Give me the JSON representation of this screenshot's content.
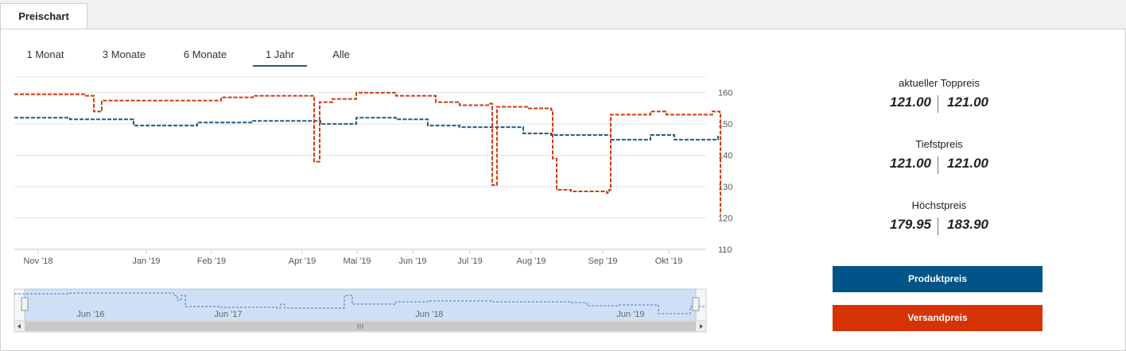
{
  "tabs": [
    {
      "label": "Preischart"
    }
  ],
  "ranges": [
    {
      "label": "1 Monat",
      "active": false
    },
    {
      "label": "3 Monate",
      "active": false
    },
    {
      "label": "6 Monate",
      "active": false
    },
    {
      "label": "1 Jahr",
      "active": true
    },
    {
      "label": "Alle",
      "active": false
    }
  ],
  "chart_data": {
    "type": "line",
    "xlabels": [
      "Nov '18",
      "Jan '19",
      "Feb '19",
      "Apr '19",
      "Mai '19",
      "Jun '19",
      "Jul '19",
      "Aug '19",
      "Sep '19",
      "Okt '19"
    ],
    "yticks": [
      "160",
      "150",
      "140",
      "130",
      "120",
      "110"
    ],
    "ylim": [
      110,
      165
    ],
    "grid": true,
    "series": [
      {
        "color": "#1d5e86",
        "dashed": true,
        "points": [
          [
            0,
            152
          ],
          [
            70,
            151.5
          ],
          [
            150,
            149.5
          ],
          [
            230,
            150.5
          ],
          [
            300,
            151
          ],
          [
            370,
            151
          ],
          [
            385,
            150
          ],
          [
            430,
            152
          ],
          [
            480,
            151.5
          ],
          [
            520,
            149.5
          ],
          [
            560,
            149
          ],
          [
            600,
            149
          ],
          [
            640,
            147
          ],
          [
            675,
            146.5
          ],
          [
            750,
            145
          ],
          [
            800,
            146.5
          ],
          [
            830,
            145
          ],
          [
            885,
            146.5
          ]
        ]
      },
      {
        "color": "#d03b12",
        "dashed": true,
        "points": [
          [
            0,
            159.5
          ],
          [
            90,
            159
          ],
          [
            100,
            154
          ],
          [
            110,
            157.5
          ],
          [
            180,
            157.5
          ],
          [
            260,
            158.5
          ],
          [
            300,
            159
          ],
          [
            375,
            159
          ],
          [
            377,
            138
          ],
          [
            382,
            138
          ],
          [
            384,
            157
          ],
          [
            400,
            158
          ],
          [
            430,
            160
          ],
          [
            480,
            159
          ],
          [
            530,
            157
          ],
          [
            560,
            156
          ],
          [
            598,
            156.5
          ],
          [
            601,
            130.5
          ],
          [
            605,
            130.5
          ],
          [
            607,
            155.5
          ],
          [
            645,
            155
          ],
          [
            675,
            154.5
          ],
          [
            677,
            139
          ],
          [
            680,
            139
          ],
          [
            682,
            129
          ],
          [
            700,
            128.5
          ],
          [
            745,
            128
          ],
          [
            748,
            129
          ],
          [
            750,
            153
          ],
          [
            790,
            153
          ],
          [
            800,
            154
          ],
          [
            820,
            153
          ],
          [
            850,
            153
          ],
          [
            878,
            154
          ],
          [
            887,
            153
          ],
          [
            888,
            121
          ]
        ]
      }
    ],
    "navigator": {
      "xlabels": [
        "Jun '16",
        "Jun '17",
        "Jun '18",
        "Jun '19"
      ]
    }
  },
  "stats": [
    {
      "title": "aktueller Toppreis",
      "product": "121.00",
      "shipping": "121.00"
    },
    {
      "title": "Tiefstpreis",
      "product": "121.00",
      "shipping": "121.00"
    },
    {
      "title": "Höchstpreis",
      "product": "179.95",
      "shipping": "183.90"
    }
  ],
  "buttons": {
    "product": "Produktpreis",
    "shipping": "Versandpreis"
  },
  "colors": {
    "product": "#005487",
    "shipping": "#d63203"
  }
}
